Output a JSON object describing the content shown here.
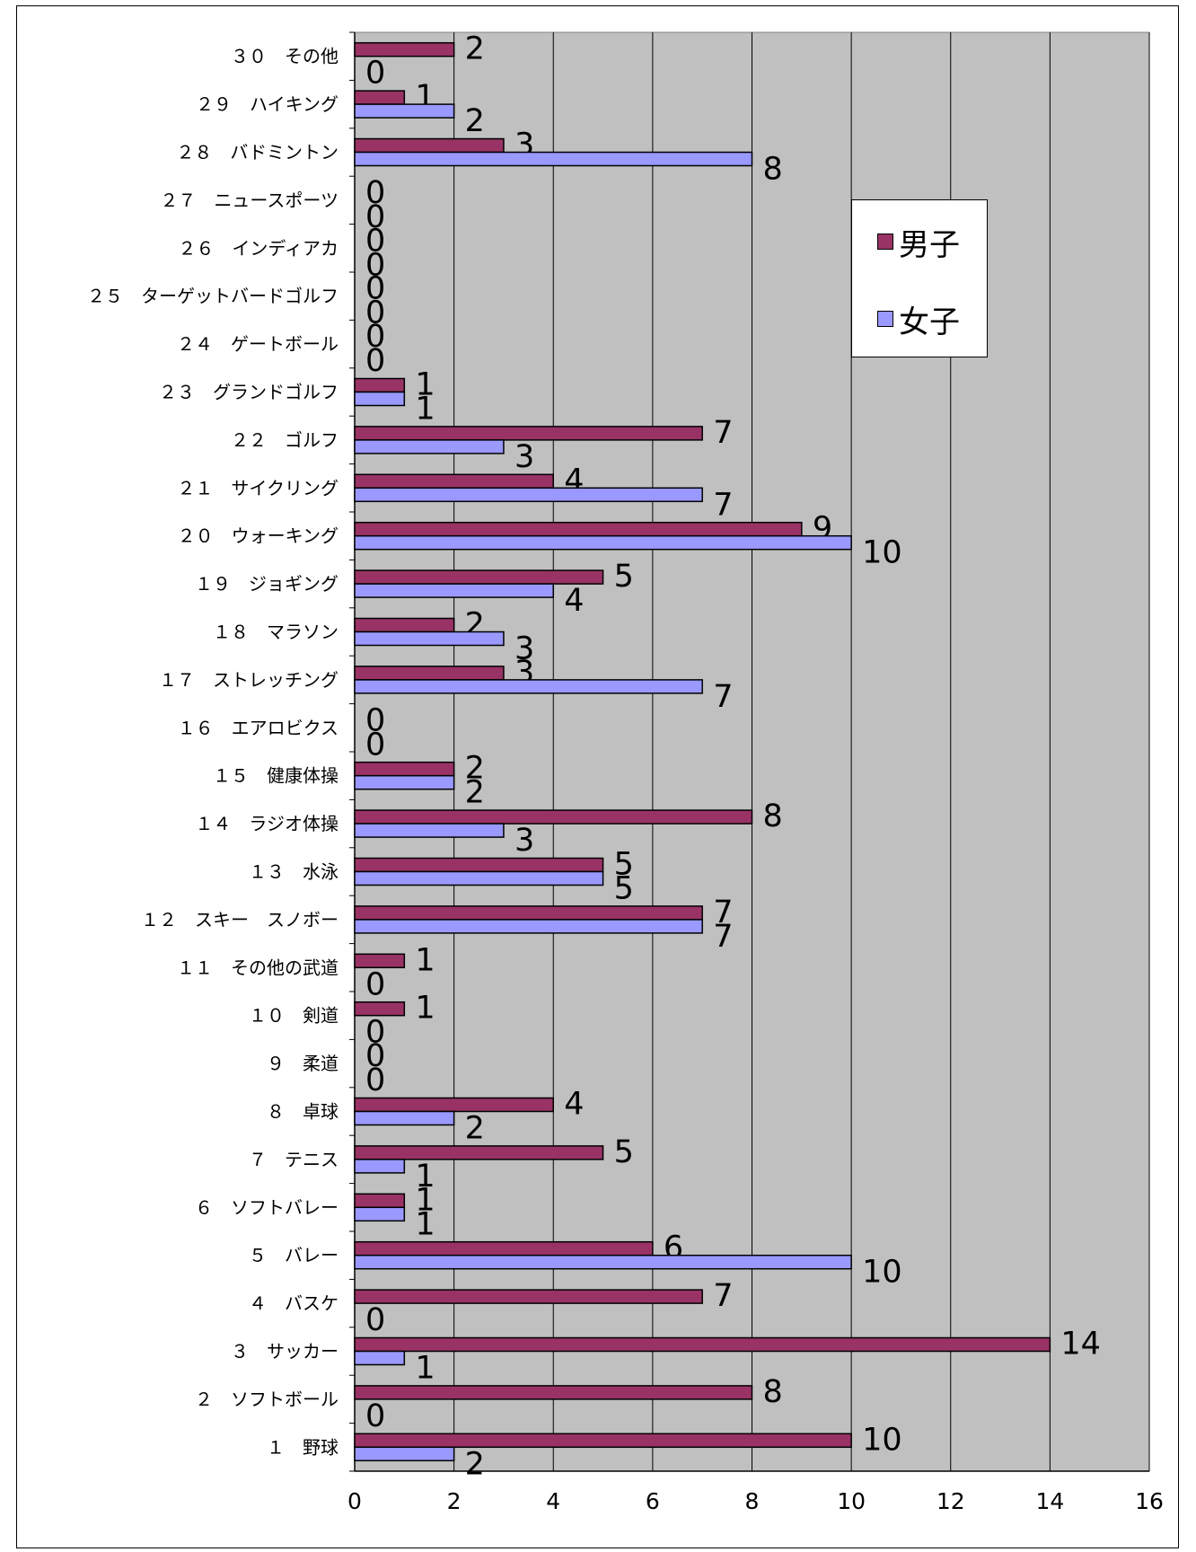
{
  "chart_data": {
    "type": "bar",
    "orientation": "horizontal",
    "title": "",
    "xlim": [
      0,
      16
    ],
    "xticks": [
      0,
      2,
      4,
      6,
      8,
      10,
      12,
      14,
      16
    ],
    "grid": true,
    "legend_position": "top-right",
    "categories": [
      "１　野球",
      "２　ソフトボール",
      "３　サッカー",
      "４　バスケ",
      "５　バレー",
      "６　ソフトバレー",
      "７　テニス",
      "８　卓球",
      "９　柔道",
      "１０　剣道",
      "１１　その他の武道",
      "１２　スキー　スノボー",
      "１３　水泳",
      "１４　ラジオ体操",
      "１５　健康体操",
      "１６　エアロビクス",
      "１７　ストレッチング",
      "１８　マラソン",
      "１９　ジョギング",
      "２０　ウォーキング",
      "２１　サイクリング",
      "２２　ゴルフ",
      "２３　グランドゴルフ",
      "２４　ゲートボール",
      "２５　ターゲットバードゴルフ",
      "２６　インディアカ",
      "２７　ニュースポーツ",
      "２８　バドミントン",
      "２９　ハイキング",
      "３０　その他"
    ],
    "series": [
      {
        "name": "男子",
        "color": "#993366",
        "values": [
          10,
          8,
          14,
          7,
          6,
          1,
          5,
          4,
          0,
          1,
          1,
          7,
          5,
          8,
          2,
          0,
          3,
          2,
          5,
          9,
          4,
          7,
          1,
          0,
          0,
          0,
          0,
          3,
          1,
          2
        ]
      },
      {
        "name": "女子",
        "color": "#9999ff",
        "values": [
          2,
          0,
          1,
          0,
          10,
          1,
          1,
          2,
          0,
          0,
          0,
          7,
          5,
          3,
          2,
          0,
          7,
          3,
          4,
          10,
          7,
          3,
          1,
          0,
          0,
          0,
          0,
          8,
          2,
          0
        ]
      }
    ],
    "plot_background": "#c0c0c0"
  }
}
